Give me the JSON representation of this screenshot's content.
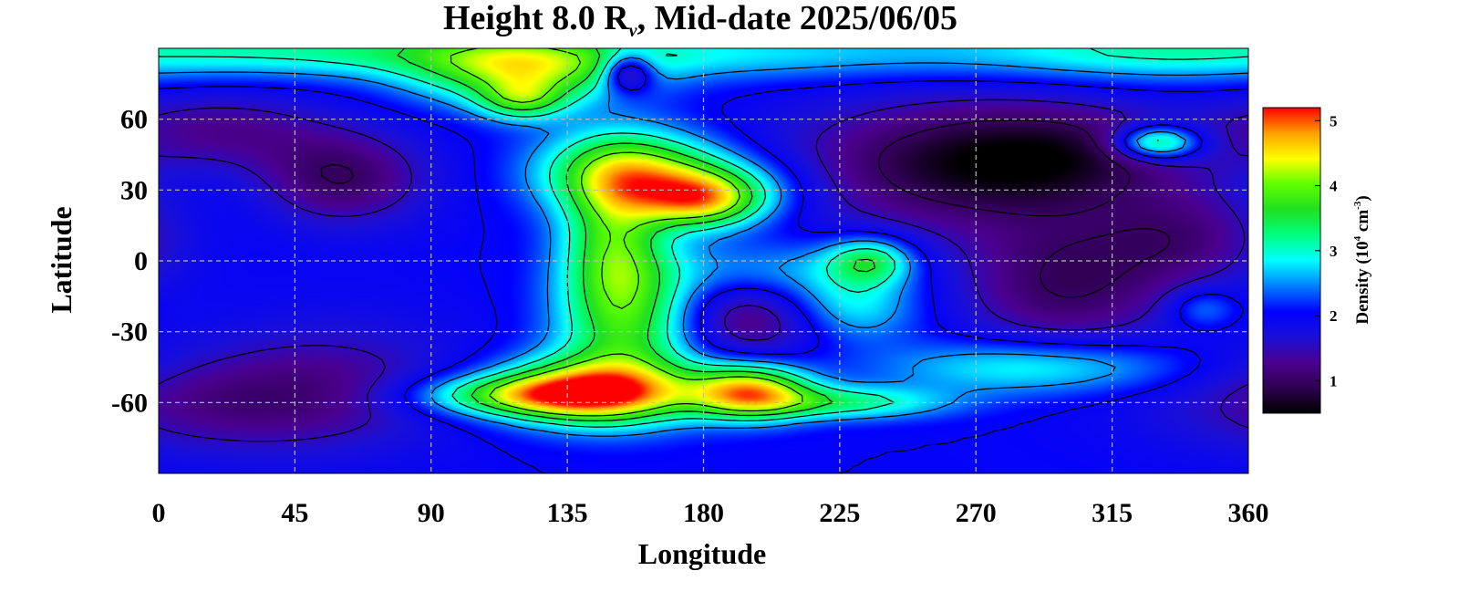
{
  "chart_data": {
    "type": "heatmap",
    "title": "Height 8.0 R",
    "title_sub": "ν",
    "title_rest": ", Mid-date 2025/06/05",
    "xlabel": "Longitude",
    "ylabel": "Latitude",
    "xlim": [
      0,
      360
    ],
    "ylim": [
      -90,
      90
    ],
    "x_ticks": [
      0,
      45,
      90,
      135,
      180,
      225,
      270,
      315,
      360
    ],
    "y_ticks": [
      -60,
      -30,
      0,
      30,
      60
    ],
    "grid": true,
    "colorbar": {
      "label_prefix": "Density (10",
      "label_exp1": "4",
      "label_mid": " cm",
      "label_exp2": "-3",
      "label_suffix": ")",
      "range": [
        0.5,
        5.2
      ],
      "ticks": [
        1,
        2,
        3,
        4,
        5
      ],
      "colors": [
        "#000000",
        "#2e0050",
        "#4b0090",
        "#1a10d8",
        "#0000ff",
        "#0080ff",
        "#00ffff",
        "#00ff80",
        "#20e020",
        "#60ff00",
        "#ffff00",
        "#ffa000",
        "#ff0000"
      ]
    },
    "contour_levels": [
      1.0,
      1.5,
      2.0,
      2.5,
      3.0,
      3.5,
      4.0
    ],
    "features": [
      {
        "lon": 0,
        "lat": 0,
        "amp": 0.0,
        "slon": 1,
        "slat": 1
      },
      {
        "lon": 25,
        "lat": 30,
        "amp": 0.1,
        "slon": 20,
        "slat": 15
      },
      {
        "lon": 60,
        "lat": 35,
        "amp": -1.0,
        "slon": 20,
        "slat": 14
      },
      {
        "lon": 20,
        "lat": 55,
        "amp": -0.7,
        "slon": 25,
        "slat": 12
      },
      {
        "lon": 20,
        "lat": -60,
        "amp": -0.7,
        "slon": 35,
        "slat": 15
      },
      {
        "lon": 60,
        "lat": -50,
        "amp": -0.5,
        "slon": 30,
        "slat": 20
      },
      {
        "lon": 120,
        "lat": 80,
        "amp": 1.8,
        "slon": 25,
        "slat": 10
      },
      {
        "lon": 120,
        "lat": 68,
        "amp": 1.2,
        "slon": 10,
        "slat": 6
      },
      {
        "lon": 155,
        "lat": 40,
        "amp": 1.6,
        "slon": 20,
        "slat": 12
      },
      {
        "lon": 180,
        "lat": 25,
        "amp": 1.8,
        "slon": 14,
        "slat": 8
      },
      {
        "lon": 175,
        "lat": 32,
        "amp": 1.2,
        "slon": 25,
        "slat": 10
      },
      {
        "lon": 150,
        "lat": 10,
        "amp": 1.5,
        "slon": 12,
        "slat": 20
      },
      {
        "lon": 155,
        "lat": -25,
        "amp": 1.6,
        "slon": 16,
        "slat": 20
      },
      {
        "lon": 145,
        "lat": -55,
        "amp": 2.6,
        "slon": 22,
        "slat": 10
      },
      {
        "lon": 120,
        "lat": -57,
        "amp": 1.6,
        "slon": 25,
        "slat": 6
      },
      {
        "lon": 195,
        "lat": -55,
        "amp": 2.5,
        "slon": 14,
        "slat": 8
      },
      {
        "lon": 225,
        "lat": -60,
        "amp": 1.2,
        "slon": 25,
        "slat": 5
      },
      {
        "lon": 290,
        "lat": -45,
        "amp": 1.0,
        "slon": 35,
        "slat": 8
      },
      {
        "lon": 200,
        "lat": -5,
        "amp": 1.0,
        "slon": 25,
        "slat": 10
      },
      {
        "lon": 195,
        "lat": -20,
        "amp": -1.0,
        "slon": 18,
        "slat": 16
      },
      {
        "lon": 235,
        "lat": 0,
        "amp": 1.3,
        "slon": 10,
        "slat": 7
      },
      {
        "lon": 230,
        "lat": -20,
        "amp": 0.8,
        "slon": 15,
        "slat": 10
      },
      {
        "lon": 260,
        "lat": 40,
        "amp": -1.1,
        "slon": 40,
        "slat": 20
      },
      {
        "lon": 300,
        "lat": 45,
        "amp": -0.8,
        "slon": 30,
        "slat": 15
      },
      {
        "lon": 300,
        "lat": -10,
        "amp": -1.0,
        "slon": 25,
        "slat": 20
      },
      {
        "lon": 340,
        "lat": 10,
        "amp": -0.7,
        "slon": 20,
        "slat": 15
      },
      {
        "lon": 330,
        "lat": 50,
        "amp": 1.8,
        "slon": 10,
        "slat": 5
      },
      {
        "lon": 345,
        "lat": -20,
        "amp": 0.6,
        "slon": 8,
        "slat": 6
      },
      {
        "lon": 155,
        "lat": 80,
        "amp": -1.5,
        "slon": 6,
        "slat": 6
      },
      {
        "lon": 180,
        "lat": 88,
        "amp": 0.8,
        "slon": 90,
        "slat": 8
      },
      {
        "lon": 60,
        "lat": 90,
        "amp": 0.8,
        "slon": 50,
        "slat": 8
      },
      {
        "lon": 330,
        "lat": 90,
        "amp": 0.8,
        "slon": 40,
        "slat": 10
      }
    ]
  }
}
